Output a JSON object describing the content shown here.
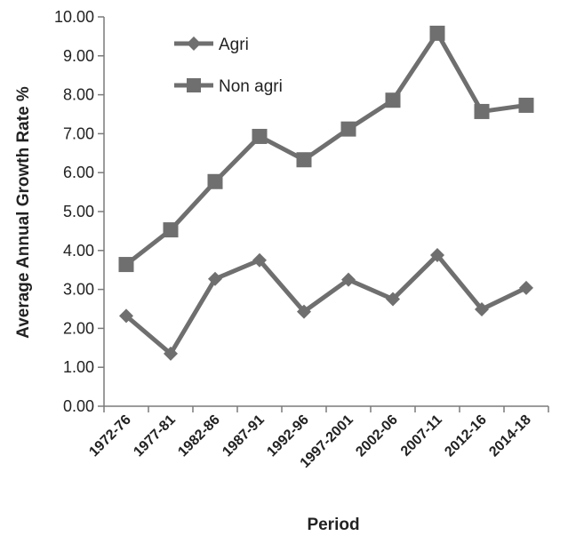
{
  "chart_data": {
    "type": "line",
    "categories": [
      "1972-76",
      "1977-81",
      "1982-86",
      "1987-91",
      "1992-96",
      "1997-2001",
      "2002-06",
      "2007-11",
      "2012-16",
      "2014-18"
    ],
    "series": [
      {
        "name": "Agri",
        "marker": "diamond",
        "values": [
          2.32,
          1.35,
          3.27,
          3.75,
          2.43,
          3.25,
          2.75,
          3.88,
          2.49,
          3.04
        ]
      },
      {
        "name": "Non agri",
        "marker": "square",
        "values": [
          3.64,
          4.53,
          5.77,
          6.93,
          6.33,
          7.12,
          7.86,
          9.58,
          7.57,
          7.73
        ]
      }
    ],
    "title": "",
    "xlabel": "Period",
    "ylabel": "Average Annual Growth Rate %",
    "ylim": [
      0,
      10
    ],
    "yticks": [
      "0.00",
      "1.00",
      "2.00",
      "3.00",
      "4.00",
      "5.00",
      "6.00",
      "7.00",
      "8.00",
      "9.00",
      "10.00"
    ],
    "grid": false,
    "legend_position": "top-left",
    "colors": {
      "line": "#6f6f6f",
      "axis": "#7a7a7a",
      "text": "#222222"
    }
  }
}
